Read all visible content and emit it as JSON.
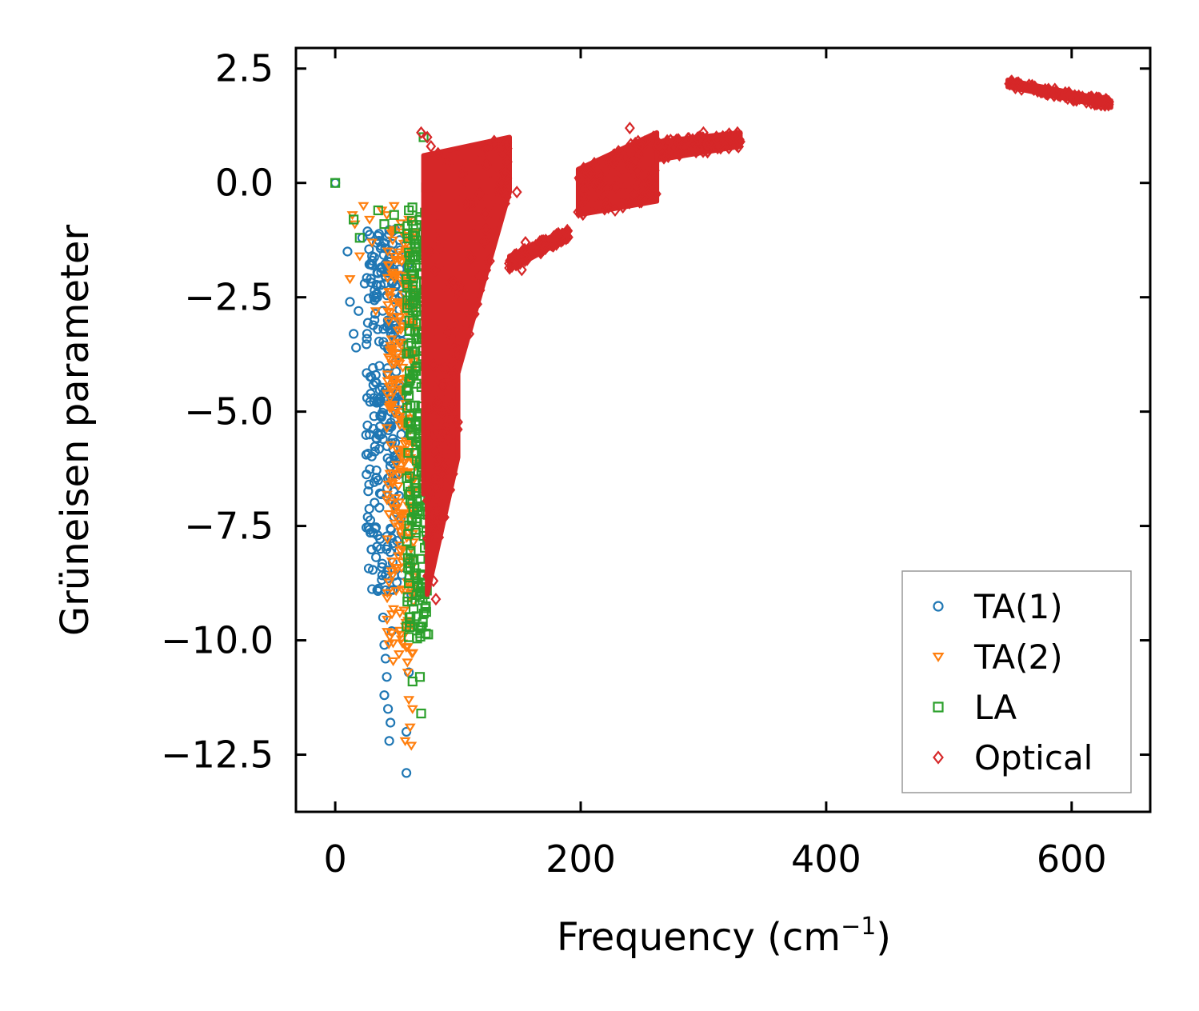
{
  "chart_data": {
    "type": "scatter",
    "xlabel": "Frequency (cm",
    "xlabel_superscript": "−1",
    "xlabel_close": ")",
    "ylabel": "Grüneisen parameter",
    "xlim": [
      -32,
      664
    ],
    "ylim": [
      -13.75,
      2.95
    ],
    "xticks": [
      0,
      200,
      400,
      600
    ],
    "xtick_labels": [
      "0",
      "200",
      "400",
      "600"
    ],
    "yticks": [
      2.5,
      0.0,
      -2.5,
      -5.0,
      -7.5,
      -10.0,
      -12.5
    ],
    "ytick_labels": [
      "2.5",
      "0.0",
      "−2.5",
      "−5.0",
      "−7.5",
      "−10.0",
      "−12.5"
    ],
    "legend_position": "lower-right",
    "series": [
      {
        "name": "TA(1)",
        "marker": "circle",
        "color": "#1f77b4",
        "points": [
          [
            0,
            0.0
          ],
          [
            10,
            -1.5
          ],
          [
            12,
            -2.6
          ],
          [
            15,
            -3.3
          ],
          [
            17,
            -3.6
          ],
          [
            19,
            -2.8
          ],
          [
            22,
            -1.2
          ],
          [
            24,
            -2.2
          ],
          [
            26,
            -4.7
          ],
          [
            28,
            -5.5
          ],
          [
            30,
            -1.6
          ],
          [
            32,
            -3.0
          ],
          [
            33,
            -4.2
          ],
          [
            34,
            -5.6
          ],
          [
            35,
            -6.5
          ],
          [
            36,
            -7.1
          ],
          [
            37,
            -8.0
          ],
          [
            38,
            -8.4
          ],
          [
            39,
            -9.5
          ],
          [
            40,
            -10.1
          ],
          [
            41,
            -10.4
          ],
          [
            42,
            -10.8
          ],
          [
            43,
            -11.5
          ],
          [
            44,
            -12.2
          ],
          [
            45,
            -11.8
          ],
          [
            46,
            -9.8
          ],
          [
            47,
            -8.9
          ],
          [
            48,
            -7.3
          ],
          [
            50,
            -6.0
          ],
          [
            52,
            -4.4
          ],
          [
            55,
            -3.1
          ],
          [
            57,
            -2.2
          ],
          [
            58,
            -12.0
          ],
          [
            59,
            -1.8
          ],
          [
            60,
            -10.7
          ],
          [
            62,
            -9.0
          ],
          [
            58,
            -12.9
          ],
          [
            40,
            -11.2
          ],
          [
            36,
            -4.0
          ],
          [
            45,
            -1.9
          ]
        ],
        "band": {
          "x_min": 25,
          "x_max": 55,
          "y_top": -1.0,
          "y_bottom": -9.0
        }
      },
      {
        "name": "TA(2)",
        "marker": "triangle-down",
        "color": "#ff7f0e",
        "points": [
          [
            12,
            -2.1
          ],
          [
            14,
            -0.7
          ],
          [
            16,
            -0.9
          ],
          [
            20,
            -1.6
          ],
          [
            23,
            -0.5
          ],
          [
            28,
            -0.8
          ],
          [
            30,
            -1.3
          ],
          [
            33,
            -2.8
          ],
          [
            38,
            -0.6
          ],
          [
            42,
            -0.7
          ],
          [
            46,
            -1.1
          ],
          [
            48,
            -0.5
          ],
          [
            50,
            -2.0
          ],
          [
            52,
            -3.5
          ],
          [
            54,
            -5.0
          ],
          [
            55,
            -6.3
          ],
          [
            56,
            -7.6
          ],
          [
            57,
            -8.9
          ],
          [
            58,
            -9.8
          ],
          [
            59,
            -10.7
          ],
          [
            60,
            -11.3
          ],
          [
            61,
            -11.9
          ],
          [
            62,
            -12.3
          ],
          [
            63,
            -11.5
          ],
          [
            57,
            -12.2
          ],
          [
            52,
            -10.3
          ],
          [
            58,
            -1.5
          ],
          [
            60,
            -0.8
          ]
        ],
        "band": {
          "x_min": 42,
          "x_max": 65,
          "y_top": -0.8,
          "y_bottom": -10.5
        }
      },
      {
        "name": "LA",
        "marker": "square",
        "color": "#2ca02c",
        "points": [
          [
            0,
            0.0
          ],
          [
            15,
            -0.8
          ],
          [
            20,
            -1.2
          ],
          [
            35,
            -0.6
          ],
          [
            40,
            -0.9
          ],
          [
            48,
            -0.7
          ],
          [
            52,
            -1.0
          ],
          [
            58,
            -2.1
          ],
          [
            60,
            -0.6
          ],
          [
            62,
            -3.5
          ],
          [
            64,
            -4.2
          ],
          [
            65,
            -5.9
          ],
          [
            66,
            -7.4
          ],
          [
            67,
            -8.8
          ],
          [
            68,
            -9.7
          ],
          [
            69,
            -10.8
          ],
          [
            70,
            -11.6
          ],
          [
            72,
            -1.8
          ],
          [
            74,
            -0.1
          ],
          [
            75,
            -1.2
          ],
          [
            72,
            1.0
          ],
          [
            76,
            -4.0
          ],
          [
            63,
            -10.9
          ],
          [
            68,
            -2.5
          ]
        ],
        "band": {
          "x_min": 58,
          "x_max": 76,
          "y_top": -0.5,
          "y_bottom": -10.0
        }
      },
      {
        "name": "Optical",
        "marker": "diamond",
        "color": "#d62728",
        "points": [
          [
            70,
            1.1
          ],
          [
            75,
            1.0
          ],
          [
            78,
            0.8
          ],
          [
            82,
            -9.1
          ],
          [
            80,
            -8.7
          ],
          [
            78,
            -7.5
          ],
          [
            140,
            0.1
          ],
          [
            148,
            -0.2
          ],
          [
            155,
            -1.3
          ],
          [
            152,
            -1.9
          ],
          [
            215,
            0.0
          ],
          [
            228,
            -0.6
          ],
          [
            240,
            1.2
          ],
          [
            252,
            0.9
          ],
          [
            258,
            0.2
          ],
          [
            280,
            0.7
          ],
          [
            300,
            1.1
          ],
          [
            322,
            0.95
          ],
          [
            550,
            2.2
          ],
          [
            630,
            1.7
          ]
        ],
        "regions": [
          {
            "x_start": 72,
            "x_end": 142,
            "y_top_start": 0.6,
            "y_top_end": 1.0,
            "y_bottom_start": -6.8,
            "y_bottom_end": -0.2
          },
          {
            "x_start": 75,
            "x_end": 100,
            "y_top_start": -5.0,
            "y_top_end": -3.0,
            "y_bottom_start": -9.0,
            "y_bottom_end": -6.0
          },
          {
            "x_start": 142,
            "x_end": 190,
            "y_top_start": -1.6,
            "y_top_end": -1.0,
            "y_bottom_start": -1.9,
            "y_bottom_end": -1.2
          },
          {
            "x_start": 198,
            "x_end": 262,
            "y_top_start": 0.3,
            "y_top_end": 1.1,
            "y_bottom_start": -0.7,
            "y_bottom_end": -0.4
          },
          {
            "x_start": 262,
            "x_end": 330,
            "y_top_start": 0.9,
            "y_top_end": 1.1,
            "y_bottom_start": 0.5,
            "y_bottom_end": 0.8
          },
          {
            "x_start": 548,
            "x_end": 632,
            "y_top_start": 2.25,
            "y_top_end": 1.8,
            "y_bottom_start": 2.1,
            "y_bottom_end": 1.65
          }
        ]
      }
    ]
  }
}
